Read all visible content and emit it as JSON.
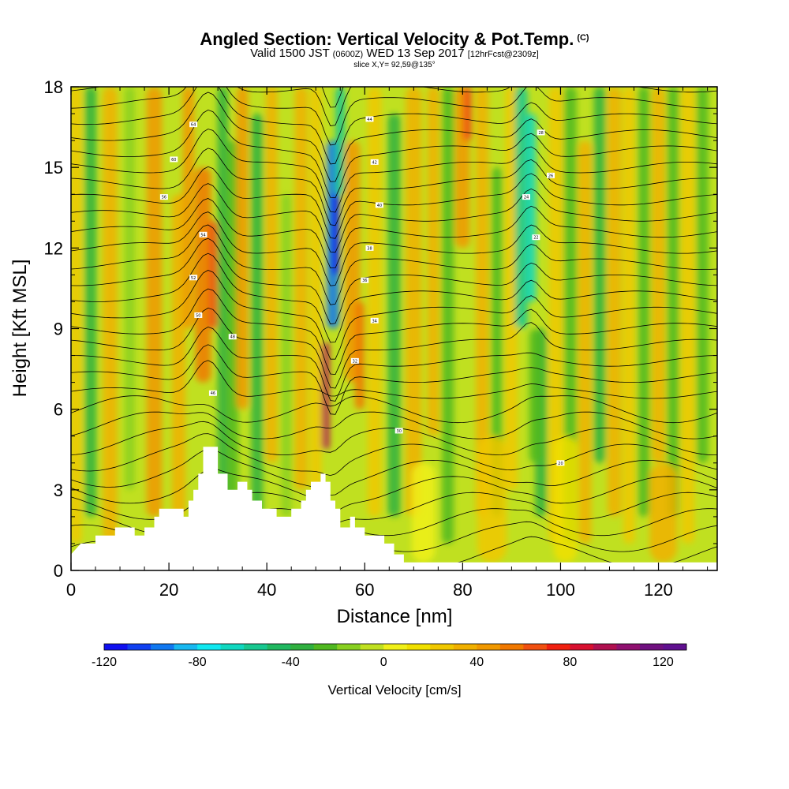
{
  "title": {
    "main": "Angled Section: Vertical Velocity & Pot.Temp.",
    "main_units": "(C)",
    "valid_a": "Valid 1500 JST",
    "valid_z": "(0600Z)",
    "valid_b": "WED 13 Sep 2017",
    "forecast": "[12hrFcst@2309z]",
    "slice": "slice X,Y= 92,59@135°"
  },
  "chart_data": {
    "type": "heatmap",
    "xlabel": "Distance [nm]",
    "ylabel": "Height [Kft MSL]",
    "xlim": [
      0,
      132
    ],
    "ylim": [
      0,
      18
    ],
    "x_ticks": [
      "0",
      "20",
      "40",
      "60",
      "80",
      "100",
      "120"
    ],
    "y_ticks": [
      "0",
      "3",
      "6",
      "9",
      "12",
      "15",
      "18"
    ],
    "colorbar": {
      "title": "Vertical Velocity [cm/s]",
      "range": [
        -120,
        130
      ],
      "tick_labels": [
        "-120",
        "-80",
        "-40",
        "0",
        "40",
        "80",
        "120"
      ],
      "colors": [
        "#1010f0",
        "#1040f0",
        "#1078f0",
        "#18b8f0",
        "#10e8f0",
        "#10d8c0",
        "#18c890",
        "#20b860",
        "#30b040",
        "#50b820",
        "#88d020",
        "#c0e020",
        "#f0f018",
        "#f0e000",
        "#f0c800",
        "#f0b000",
        "#f09800",
        "#f07800",
        "#f05010",
        "#f02010",
        "#d81030",
        "#b01050",
        "#901070",
        "#701080",
        "#601090"
      ]
    },
    "updraft_features": [
      {
        "x_nm": 28,
        "height_kft": [
          8,
          14
        ],
        "peak_cm_s": 60
      },
      {
        "x_nm": 52,
        "height_kft": [
          5,
          8
        ],
        "peak_cm_s": 90
      },
      {
        "x_nm": 58,
        "height_kft": [
          6,
          18
        ],
        "peak_cm_s": 50
      },
      {
        "x_nm": 81,
        "height_kft": [
          15,
          18
        ],
        "peak_cm_s": 60
      }
    ],
    "downdraft_features": [
      {
        "x_nm": 54,
        "height_kft": [
          9,
          16
        ],
        "peak_cm_s": -120
      },
      {
        "x_nm": 94,
        "height_kft": [
          9,
          18
        ],
        "peak_cm_s": -70
      },
      {
        "x_nm": 32,
        "height_kft": [
          3,
          6
        ],
        "peak_cm_s": -70
      }
    ],
    "theta_contour_labels": [
      "64",
      "60",
      "56",
      "54",
      "52",
      "50",
      "48",
      "46",
      "44",
      "42",
      "40",
      "38",
      "36",
      "34",
      "32",
      "30",
      "28",
      "26",
      "24",
      "22",
      "20"
    ],
    "terrain_kft": [
      [
        0,
        0.6
      ],
      [
        2,
        1
      ],
      [
        5,
        1
      ],
      [
        5,
        1.3
      ],
      [
        9,
        1.3
      ],
      [
        9,
        1.6
      ],
      [
        13,
        1.6
      ],
      [
        13,
        1.3
      ],
      [
        15,
        1.3
      ],
      [
        15,
        1.6
      ],
      [
        17,
        1.6
      ],
      [
        17,
        2
      ],
      [
        18,
        2
      ],
      [
        18,
        2.3
      ],
      [
        23,
        2.3
      ],
      [
        23,
        2
      ],
      [
        24,
        2
      ],
      [
        24,
        2.6
      ],
      [
        25,
        2.6
      ],
      [
        25,
        3
      ],
      [
        26,
        3
      ],
      [
        26,
        3.6
      ],
      [
        27,
        3.6
      ],
      [
        27,
        4.6
      ],
      [
        30,
        4.6
      ],
      [
        30,
        3.6
      ],
      [
        32,
        3.6
      ],
      [
        32,
        3
      ],
      [
        34,
        3
      ],
      [
        34,
        3.3
      ],
      [
        36,
        3.3
      ],
      [
        36,
        3
      ],
      [
        37,
        3
      ],
      [
        37,
        2.6
      ],
      [
        39,
        2.6
      ],
      [
        39,
        2.3
      ],
      [
        42,
        2.3
      ],
      [
        42,
        2
      ],
      [
        45,
        2
      ],
      [
        45,
        2.3
      ],
      [
        47,
        2.3
      ],
      [
        47,
        2.6
      ],
      [
        48,
        2.6
      ],
      [
        48,
        3
      ],
      [
        49,
        3
      ],
      [
        49,
        3.3
      ],
      [
        51,
        3.3
      ],
      [
        51,
        3.6
      ],
      [
        52,
        3.6
      ],
      [
        52,
        3.3
      ],
      [
        53,
        3.3
      ],
      [
        53,
        2.6
      ],
      [
        54,
        2.6
      ],
      [
        54,
        2.3
      ],
      [
        55,
        2.3
      ],
      [
        55,
        1.6
      ],
      [
        57,
        1.6
      ],
      [
        57,
        2
      ],
      [
        58,
        2
      ],
      [
        58,
        1.6
      ],
      [
        60,
        1.6
      ],
      [
        60,
        1.3
      ],
      [
        64,
        1.3
      ],
      [
        64,
        1
      ],
      [
        66,
        1
      ],
      [
        66,
        0.6
      ],
      [
        68,
        0.6
      ],
      [
        68,
        0.3
      ],
      [
        132,
        0.3
      ]
    ]
  }
}
